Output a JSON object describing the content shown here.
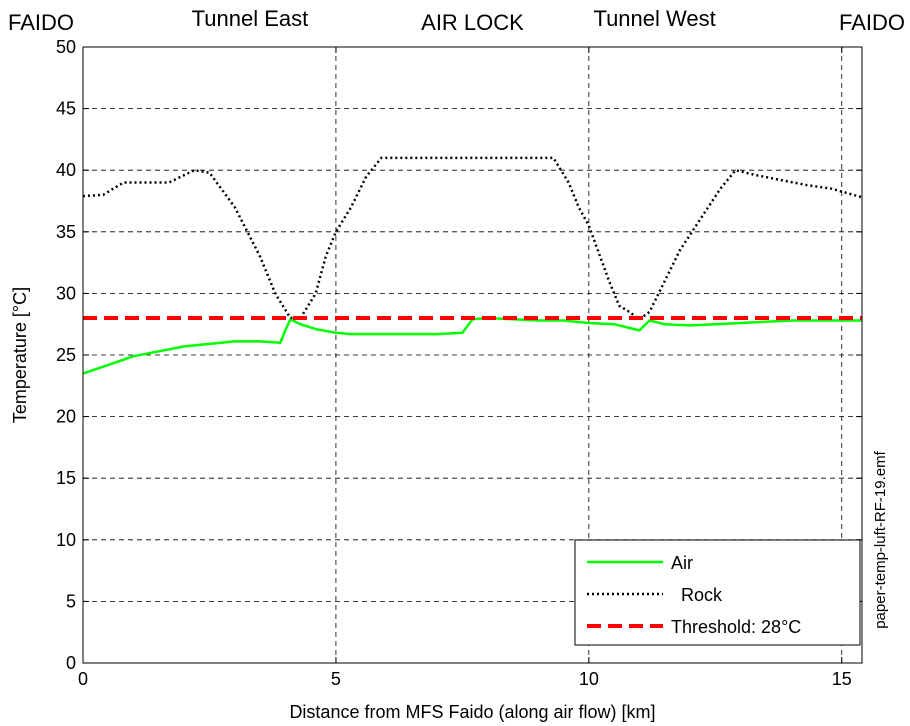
{
  "chart_data": {
    "type": "line",
    "title": "",
    "xlabel": "Distance from MFS Faido (along air flow) [km]",
    "ylabel": "Temperature [°C]",
    "xlim": [
      0,
      15.4
    ],
    "ylim": [
      0,
      50
    ],
    "x_ticks": [
      0,
      5,
      10,
      15
    ],
    "y_ticks": [
      0,
      5,
      10,
      15,
      20,
      25,
      30,
      35,
      40,
      45,
      50
    ],
    "grid": true,
    "legend_position": "bottom-right",
    "section_labels": [
      {
        "text": "FAIDO",
        "x": 0
      },
      {
        "text": "Tunnel East",
        "x": 3.3
      },
      {
        "text": "AIR LOCK",
        "x": 7.7
      },
      {
        "text": "Tunnel West",
        "x": 11.3
      },
      {
        "text": "FAIDO",
        "x": 15.4
      }
    ],
    "vertical_markers": [
      5,
      10,
      15
    ],
    "side_note": "paper-temp-luft-RF-19.emf",
    "series": [
      {
        "name": "Air",
        "color": "#00ff00",
        "style": "solid",
        "x": [
          0,
          0.5,
          1.0,
          1.5,
          2.0,
          2.5,
          3.0,
          3.5,
          3.9,
          4.0,
          4.1,
          4.3,
          4.6,
          5.0,
          5.3,
          6.0,
          7.0,
          7.5,
          7.7,
          8.0,
          8.5,
          9.0,
          9.5,
          10.0,
          10.5,
          10.8,
          11.0,
          11.2,
          11.5,
          12.0,
          12.5,
          13.0,
          13.5,
          14.0,
          14.5,
          15.0,
          15.4
        ],
        "y": [
          23.5,
          24.2,
          24.9,
          25.3,
          25.7,
          25.9,
          26.1,
          26.1,
          26.0,
          27.0,
          27.9,
          27.5,
          27.1,
          26.8,
          26.7,
          26.7,
          26.7,
          26.8,
          27.9,
          28.0,
          27.9,
          27.8,
          27.8,
          27.6,
          27.5,
          27.2,
          27.0,
          27.8,
          27.5,
          27.4,
          27.5,
          27.6,
          27.7,
          27.8,
          27.8,
          27.8,
          27.8
        ]
      },
      {
        "name": "Rock",
        "color": "#000000",
        "style": "dotted",
        "x": [
          0,
          0.4,
          0.8,
          1.2,
          1.7,
          2.2,
          2.5,
          3.0,
          3.5,
          3.8,
          4.1,
          4.3,
          4.6,
          4.8,
          5.0,
          5.3,
          5.6,
          5.9,
          6.5,
          7.0,
          7.5,
          8.0,
          8.5,
          9.0,
          9.3,
          9.6,
          9.8,
          10.0,
          10.4,
          10.6,
          10.8,
          11.0,
          11.2,
          11.5,
          11.8,
          12.2,
          12.6,
          12.9,
          13.3,
          13.8,
          14.3,
          14.8,
          15.4
        ],
        "y": [
          37.9,
          38.0,
          39.0,
          39.0,
          39.0,
          40.0,
          39.8,
          37.0,
          33.0,
          30.0,
          28.0,
          28.0,
          30.0,
          33.0,
          35.0,
          37.0,
          39.5,
          41.0,
          41.0,
          41.0,
          41.0,
          41.0,
          41.0,
          41.0,
          41.0,
          39.0,
          37.0,
          35.5,
          31.0,
          29.0,
          28.5,
          27.9,
          28.5,
          31.0,
          33.5,
          36.0,
          38.5,
          40.0,
          39.6,
          39.2,
          38.8,
          38.5,
          37.8
        ]
      },
      {
        "name": "Threshold: 28°C",
        "color": "#ff0000",
        "style": "dashed",
        "x": [
          0,
          15.4
        ],
        "y": [
          28,
          28
        ]
      }
    ]
  }
}
